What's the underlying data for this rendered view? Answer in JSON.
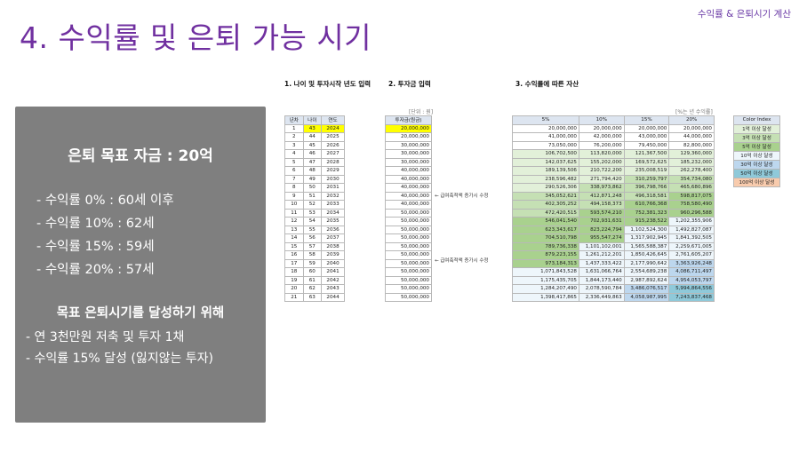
{
  "header": {
    "corner_title": "수익률 & 은퇴시기 계산",
    "title": "4. 수익률 및 은퇴 가능 시기"
  },
  "summary": {
    "goal": "은퇴 목표 자금 : 20억",
    "rates": [
      "- 수익률   0% : 60세 이후",
      "- 수익률 10% : 62세",
      "- 수익률 15% : 59세",
      "- 수익률 20% : 57세"
    ],
    "plan_title": "목표 은퇴시기를 달성하기 위해",
    "plan": [
      "- 연 3천만원 저축 및 투자 1채",
      "- 수익률 15% 달성 (잃지않는 투자)"
    ]
  },
  "sections": {
    "age": "1. 나이 및 투자시작 년도 입력",
    "investment": "2. 투자금 입력",
    "assets": "3. 수익률에 따른 자산"
  },
  "unit_note": "[단위 : 원]",
  "rate_note": "[%는 년 수익률]",
  "age_table": {
    "headers": [
      "년차",
      "나이",
      "연도"
    ],
    "rows": [
      [
        "1",
        "43",
        "2024"
      ],
      [
        "2",
        "44",
        "2025"
      ],
      [
        "3",
        "45",
        "2026"
      ],
      [
        "4",
        "46",
        "2027"
      ],
      [
        "5",
        "47",
        "2028"
      ],
      [
        "6",
        "48",
        "2029"
      ],
      [
        "7",
        "49",
        "2030"
      ],
      [
        "8",
        "50",
        "2031"
      ],
      [
        "9",
        "51",
        "2032"
      ],
      [
        "10",
        "52",
        "2033"
      ],
      [
        "11",
        "53",
        "2034"
      ],
      [
        "12",
        "54",
        "2035"
      ],
      [
        "13",
        "55",
        "2036"
      ],
      [
        "14",
        "56",
        "2037"
      ],
      [
        "15",
        "57",
        "2038"
      ],
      [
        "16",
        "58",
        "2039"
      ],
      [
        "17",
        "59",
        "2040"
      ],
      [
        "18",
        "60",
        "2041"
      ],
      [
        "19",
        "61",
        "2042"
      ],
      [
        "20",
        "62",
        "2043"
      ],
      [
        "21",
        "63",
        "2044"
      ]
    ]
  },
  "investment_table": {
    "header": "투자금(원금)",
    "values": [
      "20,000,000",
      "20,000,000",
      "30,000,000",
      "30,000,000",
      "30,000,000",
      "40,000,000",
      "40,000,000",
      "40,000,000",
      "40,000,000",
      "40,000,000",
      "50,000,000",
      "50,000,000",
      "50,000,000",
      "50,000,000",
      "50,000,000",
      "50,000,000",
      "50,000,000",
      "50,000,000",
      "50,000,000",
      "50,000,000",
      "50,000,000"
    ],
    "note": "← 급여축적액 증가시 수정"
  },
  "asset_table": {
    "headers": [
      "5%",
      "10%",
      "15%",
      "20%"
    ],
    "rows": [
      [
        "20,000,000",
        "20,000,000",
        "20,000,000",
        "20,000,000"
      ],
      [
        "41,000,000",
        "42,000,000",
        "43,000,000",
        "44,000,000"
      ],
      [
        "73,050,000",
        "76,200,000",
        "79,450,000",
        "82,800,000"
      ],
      [
        "106,702,500",
        "113,820,000",
        "121,367,500",
        "129,360,000"
      ],
      [
        "142,037,625",
        "155,202,000",
        "169,572,625",
        "185,232,000"
      ],
      [
        "189,139,506",
        "210,722,200",
        "235,008,519",
        "262,278,400"
      ],
      [
        "238,596,482",
        "271,794,420",
        "310,259,797",
        "354,734,080"
      ],
      [
        "290,526,306",
        "338,973,862",
        "396,798,766",
        "465,680,896"
      ],
      [
        "345,052,621",
        "412,871,248",
        "496,318,581",
        "598,817,075"
      ],
      [
        "402,305,252",
        "494,158,373",
        "610,766,368",
        "758,580,490"
      ],
      [
        "472,420,515",
        "593,574,210",
        "752,381,323",
        "960,296,588"
      ],
      [
        "546,041,540",
        "702,931,631",
        "915,238,522",
        "1,202,355,906"
      ],
      [
        "623,343,617",
        "823,224,794",
        "1,102,524,300",
        "1,492,827,087"
      ],
      [
        "704,510,798",
        "955,547,274",
        "1,317,902,945",
        "1,841,392,505"
      ],
      [
        "789,736,338",
        "1,101,102,001",
        "1,565,588,387",
        "2,259,671,005"
      ],
      [
        "879,223,155",
        "1,261,212,201",
        "1,850,426,645",
        "2,761,605,207"
      ],
      [
        "973,184,313",
        "1,437,333,422",
        "2,177,990,642",
        "3,363,926,248"
      ],
      [
        "1,071,843,528",
        "1,631,066,764",
        "2,554,689,238",
        "4,086,711,497"
      ],
      [
        "1,175,435,705",
        "1,844,173,440",
        "2,987,892,624",
        "4,954,053,797"
      ],
      [
        "1,284,207,490",
        "2,078,590,784",
        "3,486,076,517",
        "5,994,864,556"
      ],
      [
        "1,398,417,865",
        "2,336,449,863",
        "4,058,987,995",
        "7,243,837,468"
      ]
    ]
  },
  "legend": {
    "header": "Color Index",
    "items": [
      {
        "label": "1억 이상 달성",
        "color": "#e2f0d9"
      },
      {
        "label": "3억 이상 달성",
        "color": "#c5e0b4"
      },
      {
        "label": "5억 이상 달성",
        "color": "#a9d18e"
      },
      {
        "label": "10억 이상 달성",
        "color": "#eef6fb"
      },
      {
        "label": "30억 이상 달성",
        "color": "#bdd7ee"
      },
      {
        "label": "50억 이상 달성",
        "color": "#8fc9d9"
      },
      {
        "label": "100억 이상 달성",
        "color": "#f8cbad"
      }
    ]
  },
  "colors": {
    "title": "#7030a0",
    "box": "#7f7f7f",
    "highlight": "#ffff00"
  }
}
